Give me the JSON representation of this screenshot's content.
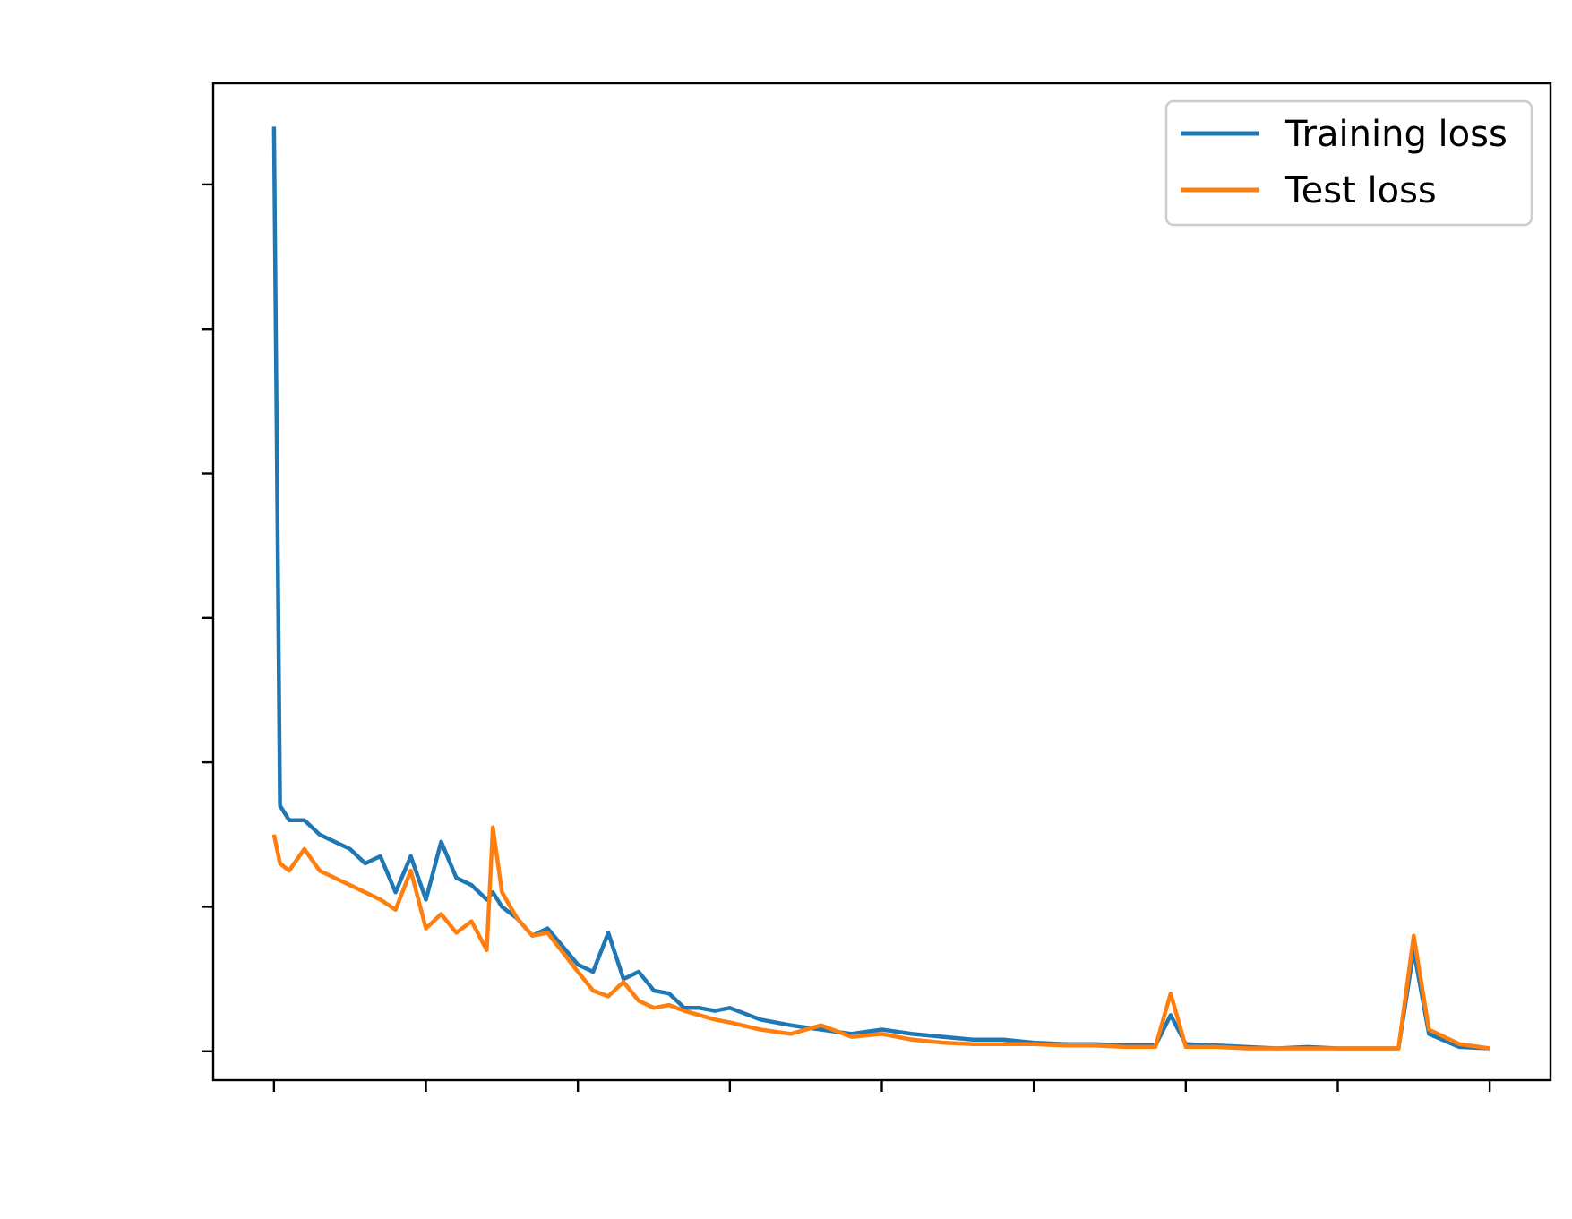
{
  "chart_data": {
    "type": "line",
    "title": "",
    "xlabel": "",
    "ylabel": "",
    "xlim": [
      -0.2,
      4.2
    ],
    "ylim": [
      -0.2,
      6.7
    ],
    "x_ticks": [
      0,
      0.5,
      1,
      1.5,
      2,
      2.5,
      3,
      3.5,
      4
    ],
    "y_ticks": [
      0,
      1,
      2,
      3,
      4,
      5,
      6
    ],
    "x_tick_labels_shown": false,
    "y_tick_labels_shown": false,
    "grid": false,
    "legend_position": "top-right",
    "series": [
      {
        "name": "Training loss",
        "color": "#1f77b4",
        "x": [
          0,
          0.02,
          0.05,
          0.1,
          0.15,
          0.25,
          0.3,
          0.35,
          0.4,
          0.45,
          0.5,
          0.55,
          0.6,
          0.65,
          0.7,
          0.72,
          0.75,
          0.8,
          0.85,
          0.9,
          1.0,
          1.05,
          1.1,
          1.15,
          1.2,
          1.25,
          1.3,
          1.35,
          1.4,
          1.45,
          1.5,
          1.6,
          1.7,
          1.8,
          1.9,
          2.0,
          2.1,
          2.2,
          2.3,
          2.4,
          2.5,
          2.6,
          2.7,
          2.8,
          2.9,
          2.95,
          3.0,
          3.1,
          3.2,
          3.3,
          3.4,
          3.5,
          3.6,
          3.7,
          3.75,
          3.8,
          3.9,
          4.0
        ],
        "y": [
          6.4,
          1.7,
          1.6,
          1.6,
          1.5,
          1.4,
          1.3,
          1.35,
          1.1,
          1.35,
          1.05,
          1.45,
          1.2,
          1.15,
          1.05,
          1.1,
          1.0,
          0.92,
          0.8,
          0.85,
          0.6,
          0.55,
          0.82,
          0.5,
          0.55,
          0.42,
          0.4,
          0.3,
          0.3,
          0.28,
          0.3,
          0.22,
          0.18,
          0.15,
          0.12,
          0.15,
          0.12,
          0.1,
          0.08,
          0.08,
          0.06,
          0.05,
          0.05,
          0.04,
          0.04,
          0.25,
          0.05,
          0.04,
          0.03,
          0.02,
          0.03,
          0.02,
          0.02,
          0.02,
          0.7,
          0.12,
          0.03,
          0.02
        ]
      },
      {
        "name": "Test loss",
        "color": "#ff7f0e",
        "x": [
          0,
          0.02,
          0.05,
          0.1,
          0.15,
          0.25,
          0.3,
          0.35,
          0.4,
          0.45,
          0.5,
          0.55,
          0.6,
          0.65,
          0.7,
          0.72,
          0.75,
          0.8,
          0.85,
          0.9,
          1.0,
          1.05,
          1.1,
          1.15,
          1.2,
          1.25,
          1.3,
          1.35,
          1.4,
          1.45,
          1.5,
          1.6,
          1.7,
          1.8,
          1.9,
          2.0,
          2.1,
          2.2,
          2.3,
          2.4,
          2.5,
          2.6,
          2.7,
          2.8,
          2.9,
          2.95,
          3.0,
          3.1,
          3.2,
          3.3,
          3.4,
          3.5,
          3.6,
          3.7,
          3.75,
          3.8,
          3.9,
          4.0
        ],
        "y": [
          1.5,
          1.3,
          1.25,
          1.4,
          1.25,
          1.15,
          1.1,
          1.05,
          0.98,
          1.25,
          0.85,
          0.95,
          0.82,
          0.9,
          0.7,
          1.55,
          1.1,
          0.92,
          0.8,
          0.82,
          0.55,
          0.42,
          0.38,
          0.48,
          0.35,
          0.3,
          0.32,
          0.28,
          0.25,
          0.22,
          0.2,
          0.15,
          0.12,
          0.18,
          0.1,
          0.12,
          0.08,
          0.06,
          0.05,
          0.05,
          0.05,
          0.04,
          0.04,
          0.03,
          0.03,
          0.4,
          0.03,
          0.03,
          0.02,
          0.02,
          0.02,
          0.02,
          0.02,
          0.02,
          0.8,
          0.15,
          0.05,
          0.02
        ]
      }
    ]
  }
}
